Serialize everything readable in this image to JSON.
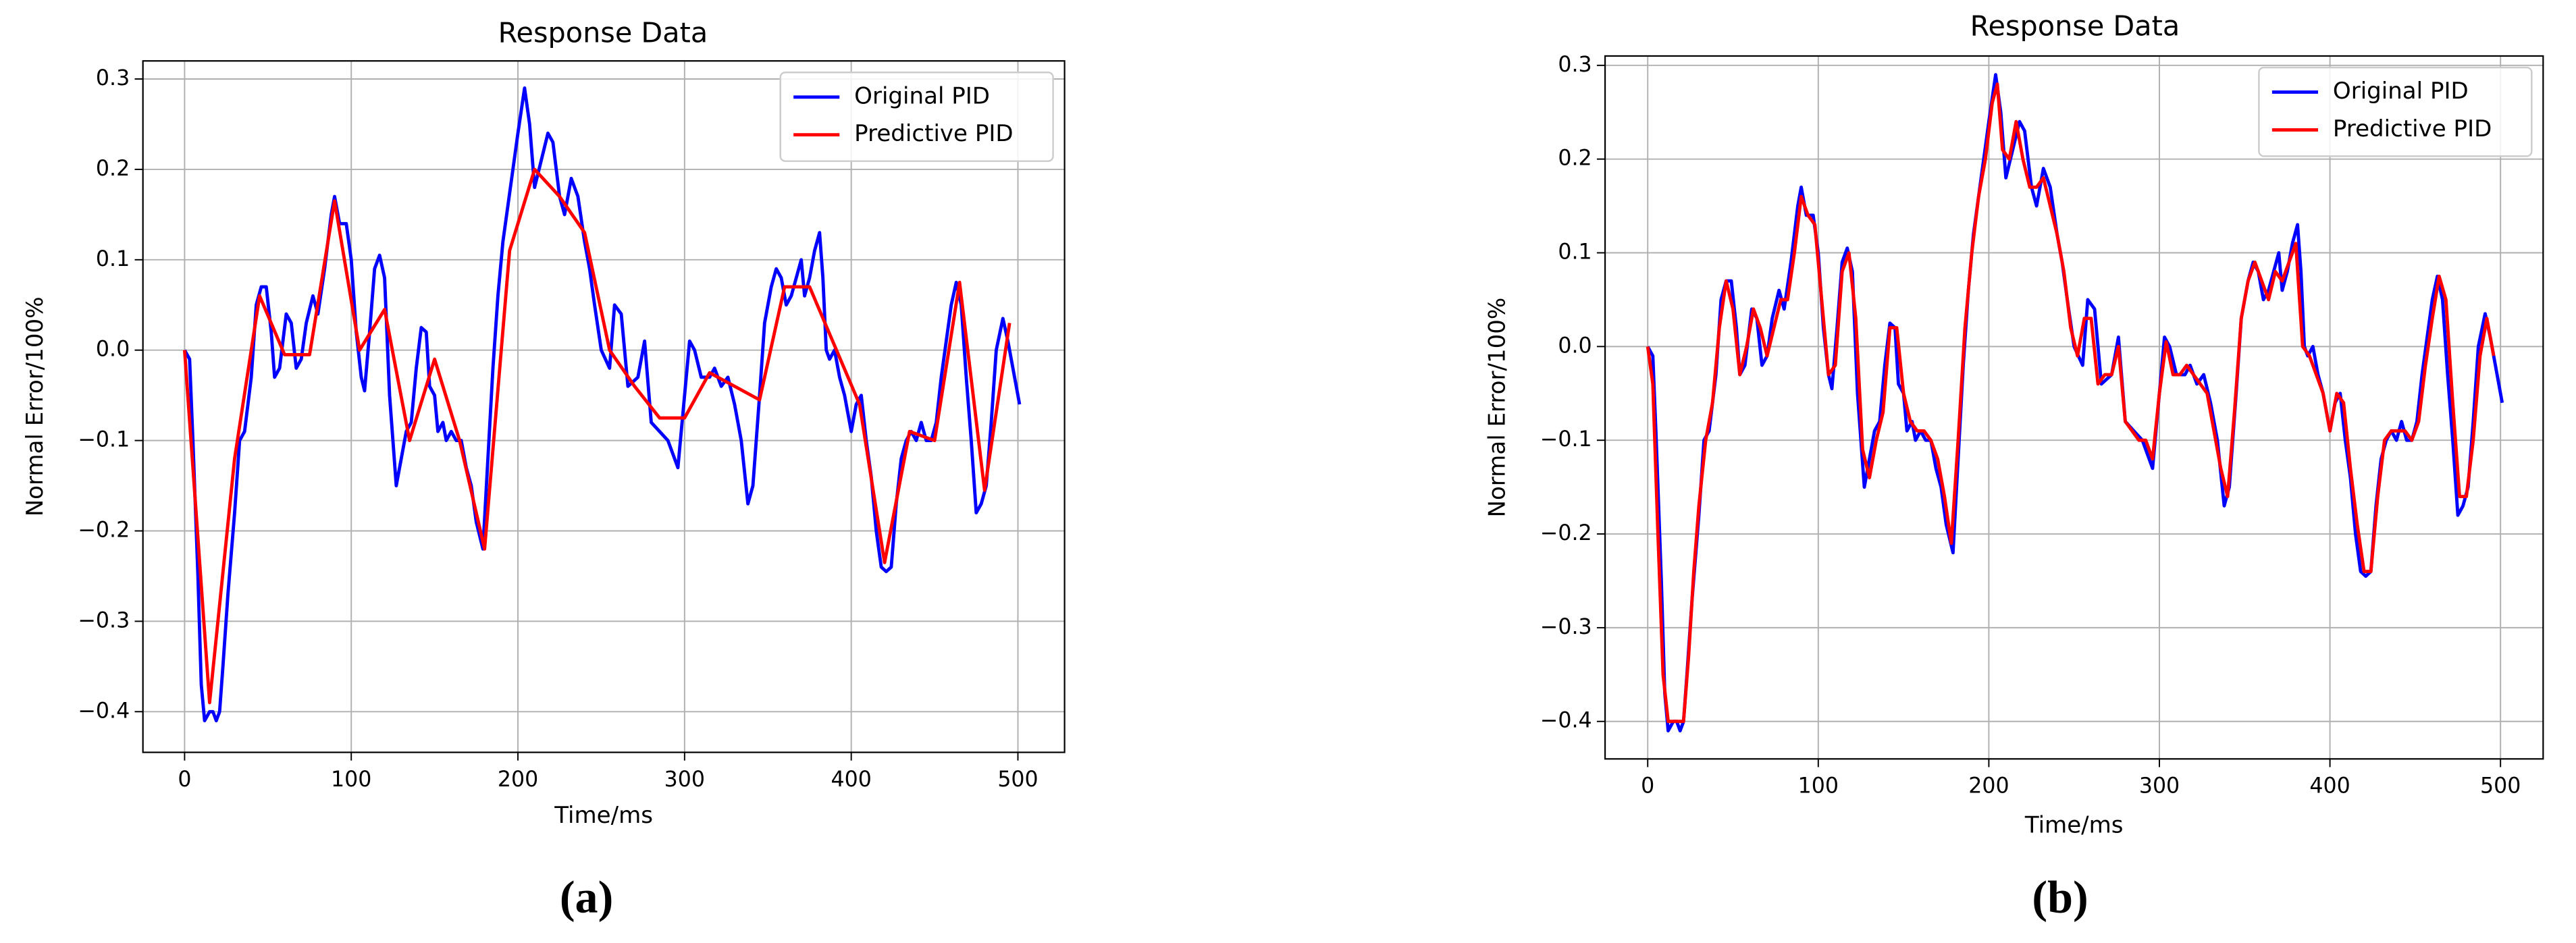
{
  "chart_data": [
    {
      "type": "line",
      "title": "Response Data",
      "x_label": "Time/ms",
      "y_label": "Normal Error/100%",
      "caption": "(a)",
      "xlim": [
        -25,
        528
      ],
      "ylim": [
        -0.445,
        0.32
      ],
      "xticks": [
        0,
        100,
        200,
        300,
        400,
        500
      ],
      "yticks": [
        {
          "value": -0.4,
          "label": "−0.4"
        },
        {
          "value": -0.3,
          "label": "−0.3"
        },
        {
          "value": -0.2,
          "label": "−0.2"
        },
        {
          "value": -0.1,
          "label": "−0.1"
        },
        {
          "value": 0,
          "label": "0.0"
        },
        {
          "value": 0.1,
          "label": "0.1"
        },
        {
          "value": 0.2,
          "label": "0.2"
        },
        {
          "value": 0.3,
          "label": "0.3"
        }
      ],
      "grid": true,
      "legend": "upper right",
      "series": [
        {
          "name": "Original PID",
          "color": "#0000ff",
          "x": [
            0,
            3,
            5,
            8,
            10,
            12,
            15,
            17,
            19,
            21,
            23,
            26,
            30,
            33,
            36,
            40,
            43,
            46,
            49,
            52,
            54,
            57,
            61,
            64,
            67,
            70,
            73,
            77,
            80,
            84,
            88,
            90,
            93,
            97,
            100,
            103,
            106,
            108,
            111,
            114,
            117,
            120,
            123,
            127,
            130,
            133,
            136,
            139,
            142,
            145,
            147,
            150,
            152,
            155,
            157,
            160,
            163,
            166,
            169,
            172,
            175,
            179,
            182,
            185,
            188,
            191,
            194,
            197,
            200,
            204,
            207,
            210,
            214,
            218,
            221,
            225,
            228,
            232,
            236,
            240,
            243,
            246,
            250,
            255,
            258,
            262,
            266,
            272,
            276,
            280,
            285,
            290,
            296,
            300,
            303,
            306,
            310,
            315,
            318,
            322,
            326,
            330,
            334,
            338,
            341,
            345,
            348,
            352,
            355,
            358,
            361,
            364,
            367,
            370,
            372,
            375,
            378,
            381,
            383,
            385,
            387,
            390,
            393,
            396,
            400,
            403,
            406,
            409,
            412,
            415,
            418,
            421,
            424,
            427,
            430,
            433,
            436,
            439,
            442,
            445,
            448,
            451,
            454,
            457,
            460,
            463,
            466,
            469,
            472,
            475,
            478,
            481,
            484,
            487,
            491,
            494,
            497,
            501
          ],
          "values": [
            0,
            -0.01,
            -0.1,
            -0.25,
            -0.37,
            -0.41,
            -0.4,
            -0.4,
            -0.41,
            -0.4,
            -0.35,
            -0.27,
            -0.18,
            -0.1,
            -0.09,
            -0.03,
            0.05,
            0.07,
            0.07,
            0.02,
            -0.03,
            -0.02,
            0.04,
            0.03,
            -0.02,
            -0.01,
            0.03,
            0.06,
            0.04,
            0.09,
            0.15,
            0.17,
            0.14,
            0.14,
            0.1,
            0.02,
            -0.03,
            -0.045,
            0.02,
            0.09,
            0.105,
            0.08,
            -0.05,
            -0.15,
            -0.12,
            -0.09,
            -0.08,
            -0.02,
            0.025,
            0.02,
            -0.04,
            -0.05,
            -0.09,
            -0.08,
            -0.1,
            -0.09,
            -0.1,
            -0.1,
            -0.13,
            -0.15,
            -0.19,
            -0.22,
            -0.12,
            -0.02,
            0.06,
            0.12,
            0.16,
            0.2,
            0.24,
            0.29,
            0.25,
            0.18,
            0.21,
            0.24,
            0.23,
            0.17,
            0.15,
            0.19,
            0.17,
            0.12,
            0.09,
            0.05,
            0,
            -0.02,
            0.05,
            0.04,
            -0.04,
            -0.03,
            0.01,
            -0.08,
            -0.09,
            -0.1,
            -0.13,
            -0.05,
            0.01,
            0,
            -0.03,
            -0.03,
            -0.02,
            -0.04,
            -0.03,
            -0.06,
            -0.1,
            -0.17,
            -0.15,
            -0.05,
            0.03,
            0.07,
            0.09,
            0.08,
            0.05,
            0.06,
            0.08,
            0.1,
            0.06,
            0.08,
            0.11,
            0.13,
            0.08,
            0,
            -0.01,
            0,
            -0.03,
            -0.05,
            -0.09,
            -0.06,
            -0.05,
            -0.1,
            -0.14,
            -0.2,
            -0.24,
            -0.245,
            -0.24,
            -0.17,
            -0.12,
            -0.1,
            -0.09,
            -0.1,
            -0.08,
            -0.1,
            -0.1,
            -0.08,
            -0.03,
            0.01,
            0.05,
            0.075,
            0.05,
            -0.03,
            -0.1,
            -0.18,
            -0.17,
            -0.15,
            -0.08,
            0,
            0.035,
            0.01,
            -0.02,
            -0.06
          ]
        },
        {
          "name": "Predictive PID",
          "color": "#ff0000",
          "x": [
            0,
            15,
            30,
            45,
            60,
            75,
            90,
            105,
            120,
            135,
            150,
            165,
            180,
            195,
            210,
            225,
            240,
            255,
            270,
            285,
            300,
            315,
            330,
            345,
            360,
            375,
            390,
            405,
            420,
            435,
            450,
            465,
            480,
            495
          ],
          "values": [
            0,
            -0.39,
            -0.12,
            0.06,
            -0.005,
            -0.005,
            0.165,
            0,
            0.045,
            -0.1,
            -0.01,
            -0.1,
            -0.22,
            0.11,
            0.2,
            0.17,
            0.13,
            0,
            -0.04,
            -0.075,
            -0.075,
            -0.025,
            -0.04,
            -0.055,
            0.07,
            0.07,
            0.005,
            -0.06,
            -0.235,
            -0.09,
            -0.1,
            0.075,
            -0.155,
            0.03
          ]
        }
      ]
    },
    {
      "type": "line",
      "title": "Response Data",
      "x_label": "Time/ms",
      "y_label": "Normal Error/100%",
      "caption": "(b)",
      "xlim": [
        -25,
        525
      ],
      "ylim": [
        -0.44,
        0.31
      ],
      "xticks": [
        0,
        100,
        200,
        300,
        400,
        500
      ],
      "yticks": [
        {
          "value": -0.4,
          "label": "−0.4"
        },
        {
          "value": -0.3,
          "label": "−0.3"
        },
        {
          "value": -0.2,
          "label": "−0.2"
        },
        {
          "value": -0.1,
          "label": "−0.1"
        },
        {
          "value": 0,
          "label": "0.0"
        },
        {
          "value": 0.1,
          "label": "0.1"
        },
        {
          "value": 0.2,
          "label": "0.2"
        },
        {
          "value": 0.3,
          "label": "0.3"
        }
      ],
      "grid": true,
      "legend": "upper right",
      "series": [
        {
          "name": "Original PID",
          "color": "#0000ff",
          "x": [
            0,
            3,
            5,
            8,
            10,
            12,
            15,
            17,
            19,
            21,
            23,
            26,
            30,
            33,
            36,
            40,
            43,
            46,
            49,
            52,
            54,
            57,
            61,
            64,
            67,
            70,
            73,
            77,
            80,
            84,
            88,
            90,
            93,
            97,
            100,
            103,
            106,
            108,
            111,
            114,
            117,
            120,
            123,
            127,
            130,
            133,
            136,
            139,
            142,
            145,
            147,
            150,
            152,
            155,
            157,
            160,
            163,
            166,
            169,
            172,
            175,
            179,
            182,
            185,
            188,
            191,
            194,
            197,
            200,
            204,
            207,
            210,
            214,
            218,
            221,
            225,
            228,
            232,
            236,
            240,
            243,
            246,
            250,
            255,
            258,
            262,
            266,
            272,
            276,
            280,
            285,
            290,
            296,
            300,
            303,
            306,
            310,
            315,
            318,
            322,
            326,
            330,
            334,
            338,
            341,
            345,
            348,
            352,
            355,
            358,
            361,
            364,
            367,
            370,
            372,
            375,
            378,
            381,
            383,
            385,
            387,
            390,
            393,
            396,
            400,
            403,
            406,
            409,
            412,
            415,
            418,
            421,
            424,
            427,
            430,
            433,
            436,
            439,
            442,
            445,
            448,
            451,
            454,
            457,
            460,
            463,
            466,
            469,
            472,
            475,
            478,
            481,
            484,
            487,
            491,
            494,
            497,
            501
          ],
          "values": [
            0,
            -0.01,
            -0.1,
            -0.25,
            -0.37,
            -0.41,
            -0.4,
            -0.4,
            -0.41,
            -0.4,
            -0.35,
            -0.27,
            -0.18,
            -0.1,
            -0.09,
            -0.03,
            0.05,
            0.07,
            0.07,
            0.02,
            -0.03,
            -0.02,
            0.04,
            0.03,
            -0.02,
            -0.01,
            0.03,
            0.06,
            0.04,
            0.09,
            0.15,
            0.17,
            0.14,
            0.14,
            0.1,
            0.02,
            -0.03,
            -0.045,
            0.02,
            0.09,
            0.105,
            0.08,
            -0.05,
            -0.15,
            -0.12,
            -0.09,
            -0.08,
            -0.02,
            0.025,
            0.02,
            -0.04,
            -0.05,
            -0.09,
            -0.08,
            -0.1,
            -0.09,
            -0.1,
            -0.1,
            -0.13,
            -0.15,
            -0.19,
            -0.22,
            -0.12,
            -0.02,
            0.06,
            0.12,
            0.16,
            0.2,
            0.24,
            0.29,
            0.25,
            0.18,
            0.21,
            0.24,
            0.23,
            0.17,
            0.15,
            0.19,
            0.17,
            0.12,
            0.09,
            0.05,
            0,
            -0.02,
            0.05,
            0.04,
            -0.04,
            -0.03,
            0.01,
            -0.08,
            -0.09,
            -0.1,
            -0.13,
            -0.05,
            0.01,
            0,
            -0.03,
            -0.03,
            -0.02,
            -0.04,
            -0.03,
            -0.06,
            -0.1,
            -0.17,
            -0.15,
            -0.05,
            0.03,
            0.07,
            0.09,
            0.08,
            0.05,
            0.06,
            0.08,
            0.1,
            0.06,
            0.08,
            0.11,
            0.13,
            0.08,
            0,
            -0.01,
            0,
            -0.03,
            -0.05,
            -0.09,
            -0.06,
            -0.05,
            -0.1,
            -0.14,
            -0.2,
            -0.24,
            -0.245,
            -0.24,
            -0.17,
            -0.12,
            -0.1,
            -0.09,
            -0.1,
            -0.08,
            -0.1,
            -0.1,
            -0.08,
            -0.03,
            0.01,
            0.05,
            0.075,
            0.05,
            -0.03,
            -0.1,
            -0.18,
            -0.17,
            -0.15,
            -0.08,
            0,
            0.035,
            0.01,
            -0.02,
            -0.06
          ]
        },
        {
          "name": "Predictive PID",
          "color": "#ff0000",
          "x": [
            0,
            3,
            6,
            9,
            12,
            15,
            18,
            21,
            24,
            27,
            30,
            34,
            38,
            42,
            46,
            50,
            54,
            58,
            62,
            66,
            70,
            74,
            78,
            82,
            86,
            90,
            94,
            98,
            102,
            106,
            110,
            114,
            118,
            122,
            126,
            130,
            134,
            138,
            142,
            146,
            150,
            154,
            158,
            162,
            166,
            170,
            174,
            178,
            182,
            186,
            190,
            194,
            198,
            202,
            205,
            208,
            212,
            216,
            220,
            224,
            228,
            232,
            236,
            240,
            244,
            248,
            252,
            256,
            260,
            264,
            268,
            272,
            276,
            280,
            284,
            288,
            292,
            296,
            300,
            304,
            308,
            312,
            316,
            320,
            324,
            328,
            332,
            336,
            340,
            344,
            348,
            352,
            356,
            360,
            364,
            368,
            372,
            376,
            380,
            384,
            388,
            392,
            396,
            400,
            404,
            408,
            412,
            416,
            420,
            424,
            428,
            432,
            436,
            440,
            444,
            448,
            452,
            456,
            460,
            464,
            468,
            472,
            476,
            480,
            484,
            488,
            492,
            496
          ],
          "values": [
            0,
            -0.04,
            -0.2,
            -0.35,
            -0.4,
            -0.4,
            -0.4,
            -0.4,
            -0.33,
            -0.24,
            -0.17,
            -0.1,
            -0.06,
            0.02,
            0.07,
            0.04,
            -0.03,
            0,
            0.04,
            0.02,
            -0.01,
            0.02,
            0.05,
            0.05,
            0.1,
            0.16,
            0.14,
            0.13,
            0.05,
            -0.03,
            -0.02,
            0.08,
            0.1,
            0.03,
            -0.11,
            -0.14,
            -0.1,
            -0.07,
            0.02,
            0.02,
            -0.05,
            -0.08,
            -0.09,
            -0.09,
            -0.1,
            -0.12,
            -0.16,
            -0.21,
            -0.1,
            0.02,
            0.1,
            0.16,
            0.2,
            0.26,
            0.28,
            0.21,
            0.2,
            0.24,
            0.2,
            0.17,
            0.17,
            0.18,
            0.15,
            0.12,
            0.08,
            0.02,
            -0.01,
            0.03,
            0.03,
            -0.04,
            -0.03,
            -0.03,
            0,
            -0.08,
            -0.09,
            -0.1,
            -0.1,
            -0.12,
            -0.05,
            0.005,
            -0.03,
            -0.03,
            -0.02,
            -0.03,
            -0.04,
            -0.05,
            -0.09,
            -0.13,
            -0.16,
            -0.07,
            0.03,
            0.07,
            0.09,
            0.07,
            0.05,
            0.08,
            0.07,
            0.09,
            0.11,
            0,
            -0.01,
            -0.03,
            -0.05,
            -0.09,
            -0.05,
            -0.06,
            -0.13,
            -0.19,
            -0.24,
            -0.24,
            -0.16,
            -0.1,
            -0.09,
            -0.09,
            -0.09,
            -0.1,
            -0.08,
            -0.02,
            0.03,
            0.075,
            0.05,
            -0.06,
            -0.16,
            -0.16,
            -0.1,
            -0.01,
            0.03,
            -0.01
          ]
        }
      ]
    }
  ]
}
